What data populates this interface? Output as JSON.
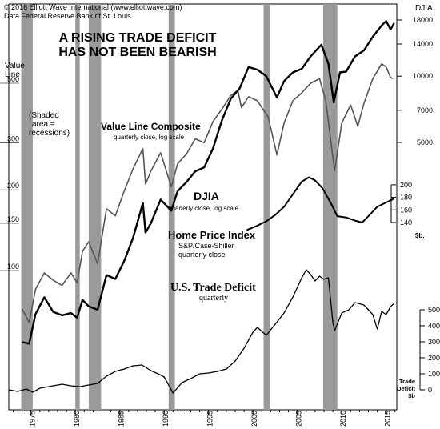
{
  "chart_data": {
    "type": "line",
    "title": "A RISING TRADE DEFICIT\nHAS NOT BEEN BEARISH",
    "credit": "© 2016 Elliott Wave International (www.elliottwave.com)",
    "source": "Data Federal Reserve Bank of St. Louis",
    "recessions_note": "(Shaded\narea =\nrecessions)",
    "x_ticks": [
      "1975",
      "1980",
      "1985",
      "1990",
      "1995",
      "2000",
      "2005",
      "2010",
      "2015"
    ],
    "x_range": [
      1972.5,
      2016.2
    ],
    "recessions": [
      [
        1973.9,
        1975.2
      ],
      [
        1980.0,
        1980.5
      ],
      [
        1981.5,
        1982.9
      ],
      [
        1990.5,
        1991.2
      ],
      [
        2001.2,
        2001.9
      ],
      [
        2007.9,
        2009.5
      ]
    ],
    "axes": {
      "value_line": {
        "label": "Value\nLine",
        "ticks": [
          "500",
          "300",
          "200",
          "150",
          "100"
        ]
      },
      "djia": {
        "label": "DJIA",
        "ticks": [
          "18000",
          "14000",
          "10000",
          "7000",
          "5000"
        ]
      },
      "home": {
        "ticks": [
          "200",
          "180",
          "160",
          "140"
        ]
      },
      "deficit": {
        "label": "Trade\nDeficit\n$b",
        "ticks": [
          "500",
          "400",
          "300",
          "200",
          "100",
          "0"
        ]
      },
      "home_unit": "$b."
    },
    "series": [
      {
        "name": "Value Line Composite",
        "note": "quarterly close, log scale",
        "points": [
          [
            1974.0,
            72
          ],
          [
            1974.8,
            64
          ],
          [
            1975.5,
            85
          ],
          [
            1976.5,
            98
          ],
          [
            1977.5,
            92
          ],
          [
            1978.5,
            88
          ],
          [
            1979.5,
            98
          ],
          [
            1980.2,
            90
          ],
          [
            1980.8,
            118
          ],
          [
            1981.5,
            128
          ],
          [
            1982.5,
            106
          ],
          [
            1983.5,
            170
          ],
          [
            1984.5,
            160
          ],
          [
            1985.5,
            198
          ],
          [
            1986.5,
            240
          ],
          [
            1987.6,
            285
          ],
          [
            1987.9,
            210
          ],
          [
            1988.5,
            235
          ],
          [
            1989.6,
            275
          ],
          [
            1990.8,
            205
          ],
          [
            1991.5,
            250
          ],
          [
            1992.5,
            272
          ],
          [
            1993.5,
            310
          ],
          [
            1994.5,
            300
          ],
          [
            1995.5,
            360
          ],
          [
            1996.5,
            400
          ],
          [
            1997.5,
            450
          ],
          [
            1998.3,
            470
          ],
          [
            1998.7,
            405
          ],
          [
            1999.5,
            445
          ],
          [
            2000.5,
            430
          ],
          [
            2001.0,
            405
          ],
          [
            2001.7,
            375
          ],
          [
            2002.7,
            270
          ],
          [
            2003.5,
            355
          ],
          [
            2004.5,
            430
          ],
          [
            2005.5,
            460
          ],
          [
            2006.5,
            500
          ],
          [
            2007.5,
            520
          ],
          [
            2008.2,
            430
          ],
          [
            2009.2,
            235
          ],
          [
            2010.0,
            355
          ],
          [
            2011.0,
            415
          ],
          [
            2011.8,
            345
          ],
          [
            2012.5,
            420
          ],
          [
            2013.5,
            520
          ],
          [
            2014.5,
            590
          ],
          [
            2015.0,
            575
          ],
          [
            2015.5,
            525
          ],
          [
            2015.8,
            520
          ]
        ]
      },
      {
        "name": "DJIA",
        "note": "quarterly close, log scale",
        "points": [
          [
            1974.0,
            620
          ],
          [
            1974.8,
            610
          ],
          [
            1975.5,
            830
          ],
          [
            1976.5,
            990
          ],
          [
            1977.5,
            850
          ],
          [
            1978.5,
            820
          ],
          [
            1979.5,
            840
          ],
          [
            1980.2,
            800
          ],
          [
            1980.8,
            965
          ],
          [
            1981.5,
            900
          ],
          [
            1982.5,
            870
          ],
          [
            1983.5,
            1250
          ],
          [
            1984.5,
            1200
          ],
          [
            1985.5,
            1450
          ],
          [
            1986.5,
            1850
          ],
          [
            1987.6,
            2650
          ],
          [
            1987.9,
            1950
          ],
          [
            1988.5,
            2150
          ],
          [
            1989.6,
            2750
          ],
          [
            1990.8,
            2450
          ],
          [
            1991.5,
            3000
          ],
          [
            1992.5,
            3300
          ],
          [
            1993.5,
            3700
          ],
          [
            1994.5,
            3850
          ],
          [
            1995.5,
            4700
          ],
          [
            1996.5,
            6300
          ],
          [
            1997.5,
            7900
          ],
          [
            1998.5,
            8800
          ],
          [
            1999.5,
            11000
          ],
          [
            2000.5,
            10700
          ],
          [
            2001.5,
            10000
          ],
          [
            2002.7,
            8000
          ],
          [
            2003.5,
            9500
          ],
          [
            2004.5,
            10400
          ],
          [
            2005.5,
            10800
          ],
          [
            2006.5,
            12300
          ],
          [
            2007.7,
            13900
          ],
          [
            2008.5,
            11400
          ],
          [
            2009.1,
            7600
          ],
          [
            2009.8,
            10400
          ],
          [
            2010.5,
            10500
          ],
          [
            2011.5,
            12300
          ],
          [
            2012.5,
            13100
          ],
          [
            2013.5,
            15100
          ],
          [
            2014.5,
            17000
          ],
          [
            2015.0,
            17800
          ],
          [
            2015.5,
            16300
          ],
          [
            2015.9,
            17400
          ]
        ]
      },
      {
        "name": "Home Price Index",
        "note": "S&P/Case-Shiller\nquarterly close",
        "points": [
          [
            1999.3,
            128
          ],
          [
            2000.5,
            135
          ],
          [
            2001.5,
            142
          ],
          [
            2002.5,
            152
          ],
          [
            2003.5,
            165
          ],
          [
            2004.5,
            185
          ],
          [
            2005.5,
            205
          ],
          [
            2006.3,
            212
          ],
          [
            2007.0,
            207
          ],
          [
            2007.8,
            195
          ],
          [
            2008.8,
            170
          ],
          [
            2009.5,
            150
          ],
          [
            2010.5,
            148
          ],
          [
            2011.5,
            143
          ],
          [
            2012.3,
            140
          ],
          [
            2013.0,
            150
          ],
          [
            2014.0,
            165
          ],
          [
            2015.0,
            172
          ],
          [
            2015.9,
            178
          ]
        ]
      },
      {
        "name": "U.S. Trade Deficit",
        "note": "quarterly",
        "points": [
          [
            1972.5,
            0
          ],
          [
            1973.5,
            -10
          ],
          [
            1974.5,
            5
          ],
          [
            1975.2,
            -15
          ],
          [
            1976.0,
            10
          ],
          [
            1977.5,
            25
          ],
          [
            1978.5,
            35
          ],
          [
            1979.5,
            25
          ],
          [
            1980.5,
            20
          ],
          [
            1981.5,
            30
          ],
          [
            1982.5,
            40
          ],
          [
            1983.5,
            85
          ],
          [
            1984.5,
            115
          ],
          [
            1985.5,
            130
          ],
          [
            1986.5,
            150
          ],
          [
            1987.5,
            155
          ],
          [
            1988.5,
            120
          ],
          [
            1989.5,
            95
          ],
          [
            1990.0,
            80
          ],
          [
            1990.6,
            20
          ],
          [
            1991.0,
            -20
          ],
          [
            1992.0,
            45
          ],
          [
            1993.0,
            70
          ],
          [
            1994.0,
            100
          ],
          [
            1995.0,
            105
          ],
          [
            1996.0,
            115
          ],
          [
            1997.0,
            130
          ],
          [
            1998.0,
            180
          ],
          [
            1999.0,
            260
          ],
          [
            2000.0,
            360
          ],
          [
            2000.5,
            390
          ],
          [
            2001.5,
            340
          ],
          [
            2002.5,
            410
          ],
          [
            2003.5,
            480
          ],
          [
            2004.5,
            580
          ],
          [
            2005.5,
            700
          ],
          [
            2006.0,
            750
          ],
          [
            2006.5,
            720
          ],
          [
            2007.0,
            680
          ],
          [
            2007.5,
            710
          ],
          [
            2008.0,
            690
          ],
          [
            2008.5,
            700
          ],
          [
            2009.0,
            420
          ],
          [
            2009.2,
            370
          ],
          [
            2010.0,
            480
          ],
          [
            2010.8,
            500
          ],
          [
            2011.5,
            545
          ],
          [
            2012.5,
            530
          ],
          [
            2013.5,
            470
          ],
          [
            2014.0,
            380
          ],
          [
            2014.5,
            490
          ],
          [
            2015.0,
            470
          ],
          [
            2015.5,
            520
          ],
          [
            2015.9,
            540
          ]
        ]
      }
    ]
  }
}
